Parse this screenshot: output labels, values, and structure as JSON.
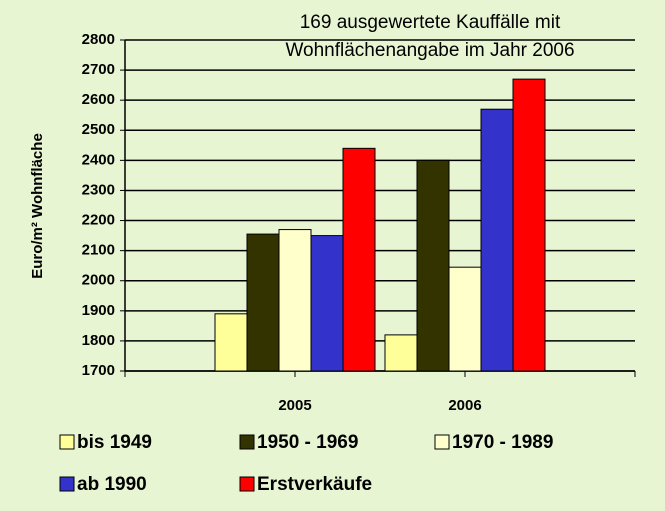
{
  "chart_data": {
    "type": "bar",
    "title": [
      "169 ausgewertete Kauffälle mit",
      "Wohnflächenangabe im Jahr 2006"
    ],
    "y_label": "Euro/m² Wohnfläche",
    "categories": [
      "2005",
      "2006"
    ],
    "series": [
      {
        "name": "bis 1949",
        "color": "#ffff99",
        "values": [
          1890,
          1820
        ]
      },
      {
        "name": "1950 - 1969",
        "color": "#333300",
        "values": [
          2155,
          2400
        ]
      },
      {
        "name": "1970 - 1989",
        "color": "#ffffcc",
        "values": [
          2170,
          2045
        ]
      },
      {
        "name": "ab 1990",
        "color": "#3333cc",
        "values": [
          2150,
          2570
        ]
      },
      {
        "name": "Erstverkäufe",
        "color": "#ff0000",
        "values": [
          2440,
          2670
        ]
      }
    ],
    "ylim": [
      1700,
      2800
    ],
    "yticks": [
      1700,
      1800,
      1900,
      2000,
      2100,
      2200,
      2300,
      2400,
      2500,
      2600,
      2700,
      2800
    ],
    "grid": true
  }
}
